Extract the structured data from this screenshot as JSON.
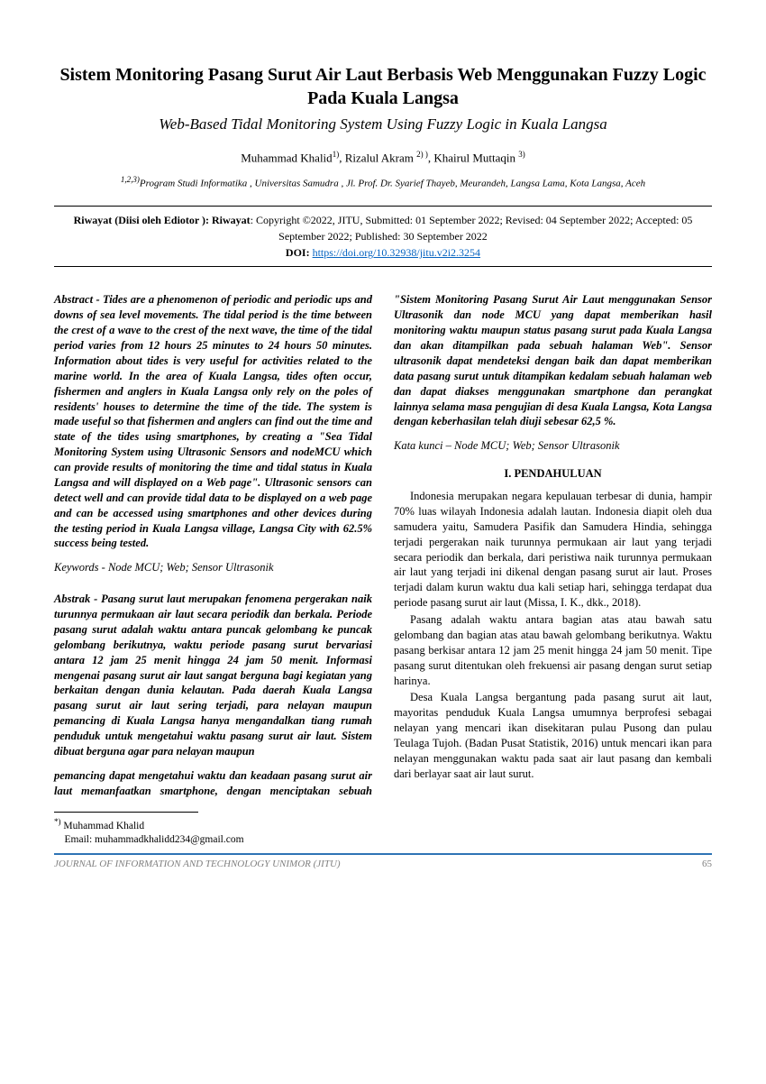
{
  "title_main": "Sistem Monitoring Pasang Surut Air Laut Berbasis Web Menggunakan Fuzzy Logic Pada Kuala Langsa",
  "title_sub": "Web-Based Tidal Monitoring System Using Fuzzy Logic in Kuala Langsa",
  "authors_line": "Muhammad Khalid",
  "author1_sup": "1)",
  "author2": ", Rizalul Akram ",
  "author2_sup": "2) )",
  "author3": ", Khairul Muttaqin ",
  "author3_sup": "3)",
  "affiliation_sup": "1,2,3)",
  "affiliation": "Program Studi Informatika , Universitas Samudra , Jl. Prof. Dr. Syarief Thayeb, Meurandeh, Langsa Lama, Kota Langsa, Aceh",
  "riwayat_label": "Riwayat (Diisi oleh Ediotor )",
  "riwayat_label2": ": Riwayat",
  "riwayat_text": ": Copyright ©2022, JITU, Submitted: 01 September  2022; Revised: 04 September 2022; Accepted: 05 September 2022; Published: 30 September 2022",
  "doi_label": "DOI:",
  "doi_url": "https://doi.org/10.32938/jitu.v2i2.3254",
  "abstract_en": "Abstract - Tides are a phenomenon of periodic and periodic ups and downs of sea level movements. The tidal period is the time between the crest of a wave to the crest of the next wave, the time of the tidal period varies from 12 hours 25 minutes to 24 hours 50 minutes. Information about tides is very useful for activities related to the marine world. In the area of Kuala Langsa, tides often occur, fishermen and anglers in Kuala Langsa only rely on the poles of residents' houses to determine the time of the tide. The system is made useful so that fishermen and anglers can find out the time and state of the tides using smartphones, by creating a \"Sea Tidal Monitoring System using Ultrasonic Sensors and nodeMCU which can provide results of monitoring the time and tidal status in Kuala Langsa and will displayed on a Web page\". Ultrasonic sensors can detect well and can provide tidal data to be displayed on a web page and can be accessed using smartphones and other devices during the testing period in Kuala Langsa village, Langsa City with 62.5% success being tested.",
  "keywords_en": "Keywords - Node MCU; Web; Sensor Ultrasonik",
  "abstract_id_p1": "Abstrak - Pasang surut laut merupakan fenomena pergerakan naik turunnya permukaan air laut secara periodik dan berkala. Periode pasang surut adalah waktu antara puncak gelombang ke puncak gelombang berikutnya, waktu periode pasang surut bervariasi antara 12 jam 25 menit hingga 24 jam 50 menit. Informasi mengenai pasang surut air laut sangat berguna bagi kegiatan yang berkaitan dengan dunia kelautan. Pada daerah Kuala Langsa pasang surut air laut sering terjadi, para nelayan maupun pemancing di Kuala Langsa hanya mengandalkan tiang rumah penduduk untuk mengetahui waktu pasang surut air laut. Sistem dibuat berguna agar para nelayan maupun",
  "abstract_id_p2": "pemancing dapat mengetahui waktu dan keadaan pasang surut air laut memanfaatkan smartphone, dengan menciptakan sebuah \"Sistem Monitoring Pasang Surut Air Laut menggunakan Sensor Ultrasonik dan node MCU yang dapat memberikan hasil monitoring waktu maupun status pasang surut pada Kuala Langsa dan akan ditampilkan pada sebuah halaman Web\". Sensor ultrasonik dapat mendeteksi dengan baik dan dapat memberikan data pasang surut untuk ditampikan kedalam sebuah halaman web dan dapat diakses menggunakan smartphone dan perangkat lainnya selama masa pengujian di desa Kuala Langsa, Kota Langsa dengan keberhasilan telah diuji sebesar 62,5 %.",
  "kata_kunci": "Kata kunci – Node MCU; Web; Sensor Ultrasonik",
  "section1": "I. PENDAHULUAN",
  "p1": "Indonesia merupakan negara kepulauan terbesar di dunia, hampir 70% luas wilayah Indonesia adalah lautan. Indonesia diapit oleh dua samudera yaitu, Samudera Pasifik dan Samudera Hindia, sehingga terjadi pergerakan naik turunnya permukaan air laut yang terjadi secara periodik dan berkala, dari peristiwa naik turunnya permukaan air laut yang terjadi ini dikenal dengan pasang surut air laut. Proses terjadi dalam kurun waktu dua kali setiap hari, sehingga terdapat dua periode pasang surut air laut (Missa, I. K., dkk., 2018).",
  "p2": "Pasang adalah waktu antara bagian atas atau bawah satu gelombang dan bagian atas atau bawah gelombang berikutnya. Waktu pasang berkisar antara 12 jam 25 menit hingga 24 jam 50 menit. Tipe pasang surut ditentukan oleh frekuensi air pasang dengan surut setiap harinya.",
  "p3": "Desa Kuala Langsa bergantung pada pasang surut ait laut, mayoritas penduduk Kuala Langsa umumnya berprofesi sebagai nelayan yang mencari ikan disekitaran pulau Pusong dan pulau Teulaga Tujoh. (Badan Pusat Statistik, 2016) untuk mencari ikan para nelayan menggunakan waktu pada saat air laut pasang dan kembali dari berlayar saat air laut surut.",
  "corr_sup": "*)",
  "corr_name": " Muhammad Khalid",
  "corr_email": "    Email: muhammadkhalidd234@gmail.com",
  "journal_name": "JOURNAL OF INFORMATION AND TECHNOLOGY UNIMOR (JITU)",
  "page_num": "65",
  "colors": {
    "link": "#0563c1",
    "footer_border": "#2e74b5",
    "footer_text": "#7f7f7f"
  }
}
